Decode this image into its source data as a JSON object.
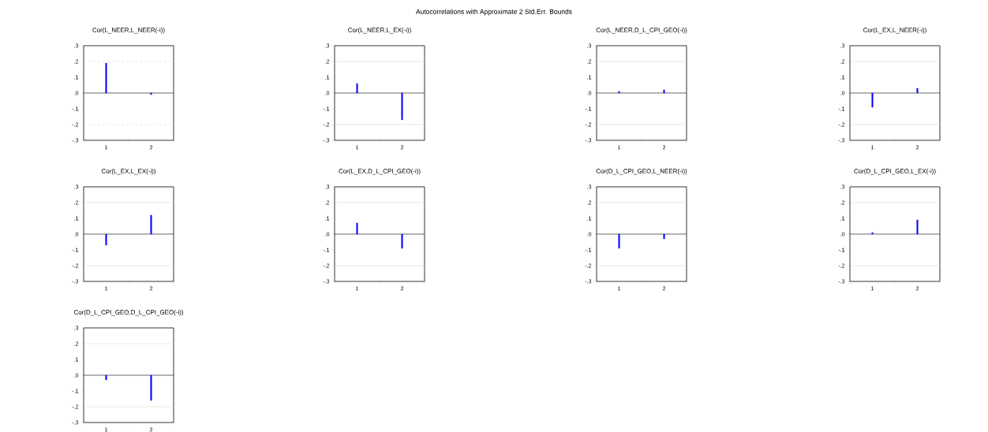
{
  "chart_data": [
    {
      "type": "bar",
      "title": "Cor(L_NEER,L_NEER(-i))",
      "annotations": [
        "Autocorrelations with Approximate 2 Std.Err. Bounds"
      ],
      "categories": [
        "1",
        "2"
      ],
      "values": [
        0.19,
        -0.01
      ],
      "color": "#0000ff",
      "ylim": [
        -0.3,
        0.3
      ],
      "yticks": [
        {
          "value": -0.3,
          "label": "-.3"
        },
        {
          "value": -0.2,
          "label": "-.2"
        },
        {
          "value": -0.1,
          "label": "-.1"
        },
        {
          "value": 0,
          "label": ".0"
        },
        {
          "value": 0.1,
          "label": ".1"
        },
        {
          "value": 0.2,
          "label": ".2"
        },
        {
          "value": 0.3,
          "label": ".3"
        }
      ],
      "ref_lines": [
        {
          "axis": "y",
          "value": 0.2,
          "color": "#d0d0d0",
          "line_style": "dashed"
        },
        {
          "axis": "y",
          "value": -0.2,
          "color": "#d0d0d0",
          "line_style": "dashed"
        },
        {
          "axis": "y",
          "value": 0,
          "color": "#000000"
        }
      ]
    },
    {
      "type": "bar",
      "title": "Cor(L_NEER,L_EX(-i))",
      "categories": [
        "1",
        "2"
      ],
      "values": [
        0.06,
        -0.17
      ],
      "color": "#0000ff",
      "ylim": [
        -0.3,
        0.3
      ],
      "yticks": [
        {
          "value": -0.3,
          "label": "-.3"
        },
        {
          "value": -0.2,
          "label": "-.2"
        },
        {
          "value": -0.1,
          "label": "-.1"
        },
        {
          "value": 0,
          "label": ".0"
        },
        {
          "value": 0.1,
          "label": ".1"
        },
        {
          "value": 0.2,
          "label": ".2"
        },
        {
          "value": 0.3,
          "label": ".3"
        }
      ],
      "ref_lines": [
        {
          "axis": "y",
          "value": 0.2,
          "color": "#d9d9d9"
        },
        {
          "axis": "y",
          "value": -0.2,
          "color": "#d9d9d9"
        },
        {
          "axis": "y",
          "value": 0,
          "color": "#000000"
        }
      ]
    },
    {
      "type": "bar",
      "title": "Cor(L_NEER,D_L_CPI_GEO(-i))",
      "categories": [
        "1",
        "2"
      ],
      "values": [
        0.01,
        0.02
      ],
      "color": "#0000ff",
      "ylim": [
        -0.3,
        0.3
      ],
      "yticks": [
        {
          "value": -0.3,
          "label": "-.3"
        },
        {
          "value": -0.2,
          "label": "-.2"
        },
        {
          "value": -0.1,
          "label": "-.1"
        },
        {
          "value": 0,
          "label": ".0"
        },
        {
          "value": 0.1,
          "label": ".1"
        },
        {
          "value": 0.2,
          "label": ".2"
        },
        {
          "value": 0.3,
          "label": ".3"
        }
      ],
      "ref_lines": [
        {
          "axis": "y",
          "value": 0.2,
          "color": "#d9d9d9"
        },
        {
          "axis": "y",
          "value": -0.2,
          "color": "#d9d9d9"
        },
        {
          "axis": "y",
          "value": 0,
          "color": "#000000"
        }
      ]
    },
    {
      "type": "bar",
      "title": "Cor(L_EX,L_NEER(-i))",
      "categories": [
        "1",
        "2"
      ],
      "values": [
        -0.09,
        0.03
      ],
      "color": "#0000ff",
      "ylim": [
        -0.3,
        0.3
      ],
      "yticks": [
        {
          "value": -0.3,
          "label": "-.3"
        },
        {
          "value": -0.2,
          "label": "-.2"
        },
        {
          "value": -0.1,
          "label": "-.1"
        },
        {
          "value": 0,
          "label": ".0"
        },
        {
          "value": 0.1,
          "label": ".1"
        },
        {
          "value": 0.2,
          "label": ".2"
        },
        {
          "value": 0.3,
          "label": ".3"
        }
      ],
      "ref_lines": [
        {
          "axis": "y",
          "value": 0.2,
          "color": "#d9d9d9"
        },
        {
          "axis": "y",
          "value": -0.2,
          "color": "#d9d9d9"
        },
        {
          "axis": "y",
          "value": 0,
          "color": "#000000"
        }
      ]
    },
    {
      "type": "bar",
      "title": "Cor(L_EX,L_EX(-i))",
      "categories": [
        "1",
        "2"
      ],
      "values": [
        -0.07,
        0.12
      ],
      "color": "#0000ff",
      "ylim": [
        -0.3,
        0.3
      ],
      "yticks": [
        {
          "value": -0.3,
          "label": "-.3"
        },
        {
          "value": -0.2,
          "label": "-.2"
        },
        {
          "value": -0.1,
          "label": "-.1"
        },
        {
          "value": 0,
          "label": ".0"
        },
        {
          "value": 0.1,
          "label": ".1"
        },
        {
          "value": 0.2,
          "label": ".2"
        },
        {
          "value": 0.3,
          "label": ".3"
        }
      ],
      "ref_lines": [
        {
          "axis": "y",
          "value": 0.2,
          "color": "#d9d9d9"
        },
        {
          "axis": "y",
          "value": -0.2,
          "color": "#d9d9d9"
        },
        {
          "axis": "y",
          "value": 0,
          "color": "#000000"
        }
      ]
    },
    {
      "type": "bar",
      "title": "Cor(L_EX,D_L_CPI_GEO(-i))",
      "categories": [
        "1",
        "2"
      ],
      "values": [
        0.07,
        -0.09
      ],
      "color": "#0000ff",
      "ylim": [
        -0.3,
        0.3
      ],
      "yticks": [
        {
          "value": -0.3,
          "label": "-.3"
        },
        {
          "value": -0.2,
          "label": "-.2"
        },
        {
          "value": -0.1,
          "label": "-.1"
        },
        {
          "value": 0,
          "label": ".0"
        },
        {
          "value": 0.1,
          "label": ".1"
        },
        {
          "value": 0.2,
          "label": ".2"
        },
        {
          "value": 0.3,
          "label": ".3"
        }
      ],
      "ref_lines": [
        {
          "axis": "y",
          "value": 0.2,
          "color": "#d9d9d9"
        },
        {
          "axis": "y",
          "value": -0.2,
          "color": "#d9d9d9"
        },
        {
          "axis": "y",
          "value": 0,
          "color": "#000000"
        }
      ]
    },
    {
      "type": "bar",
      "title": "Cor(D_L_CPI_GEO,L_NEER(-i))",
      "categories": [
        "1",
        "2"
      ],
      "values": [
        -0.09,
        -0.03
      ],
      "color": "#0000ff",
      "ylim": [
        -0.3,
        0.3
      ],
      "yticks": [
        {
          "value": -0.3,
          "label": "-.3"
        },
        {
          "value": -0.2,
          "label": "-.2"
        },
        {
          "value": -0.1,
          "label": "-.1"
        },
        {
          "value": 0,
          "label": ".0"
        },
        {
          "value": 0.1,
          "label": ".1"
        },
        {
          "value": 0.2,
          "label": ".2"
        },
        {
          "value": 0.3,
          "label": ".3"
        }
      ],
      "ref_lines": [
        {
          "axis": "y",
          "value": 0.2,
          "color": "#d9d9d9"
        },
        {
          "axis": "y",
          "value": -0.2,
          "color": "#d9d9d9"
        },
        {
          "axis": "y",
          "value": 0,
          "color": "#000000"
        }
      ]
    },
    {
      "type": "bar",
      "title": "Cor(D_L_CPI_GEO,L_EX(-i))",
      "categories": [
        "1",
        "2"
      ],
      "values": [
        0.01,
        0.09
      ],
      "color": "#0000ff",
      "ylim": [
        -0.3,
        0.3
      ],
      "yticks": [
        {
          "value": -0.3,
          "label": "-.3"
        },
        {
          "value": -0.2,
          "label": "-.2"
        },
        {
          "value": -0.1,
          "label": "-.1"
        },
        {
          "value": 0,
          "label": ".0"
        },
        {
          "value": 0.1,
          "label": ".1"
        },
        {
          "value": 0.2,
          "label": ".2"
        },
        {
          "value": 0.3,
          "label": ".3"
        }
      ],
      "ref_lines": [
        {
          "axis": "y",
          "value": 0.2,
          "color": "#d9d9d9"
        },
        {
          "axis": "y",
          "value": -0.2,
          "color": "#d9d9d9"
        },
        {
          "axis": "y",
          "value": 0,
          "color": "#000000"
        }
      ]
    },
    {
      "type": "bar",
      "title": "Cor(D_L_CPI_GEO,D_L_CPI_GEO(-i))",
      "categories": [
        "1",
        "2"
      ],
      "values": [
        -0.03,
        -0.16
      ],
      "color": "#0000ff",
      "ylim": [
        -0.3,
        0.3
      ],
      "yticks": [
        {
          "value": -0.3,
          "label": "-.3"
        },
        {
          "value": -0.2,
          "label": "-.2"
        },
        {
          "value": -0.1,
          "label": "-.1"
        },
        {
          "value": 0,
          "label": ".0"
        },
        {
          "value": 0.1,
          "label": ".1"
        },
        {
          "value": 0.2,
          "label": ".2"
        },
        {
          "value": 0.3,
          "label": ".3"
        }
      ],
      "ref_lines": [
        {
          "axis": "y",
          "value": 0.2,
          "color": "#d9d9d9"
        },
        {
          "axis": "y",
          "value": -0.2,
          "color": "#d9d9d9"
        },
        {
          "axis": "y",
          "value": 0,
          "color": "#000000"
        }
      ]
    }
  ]
}
